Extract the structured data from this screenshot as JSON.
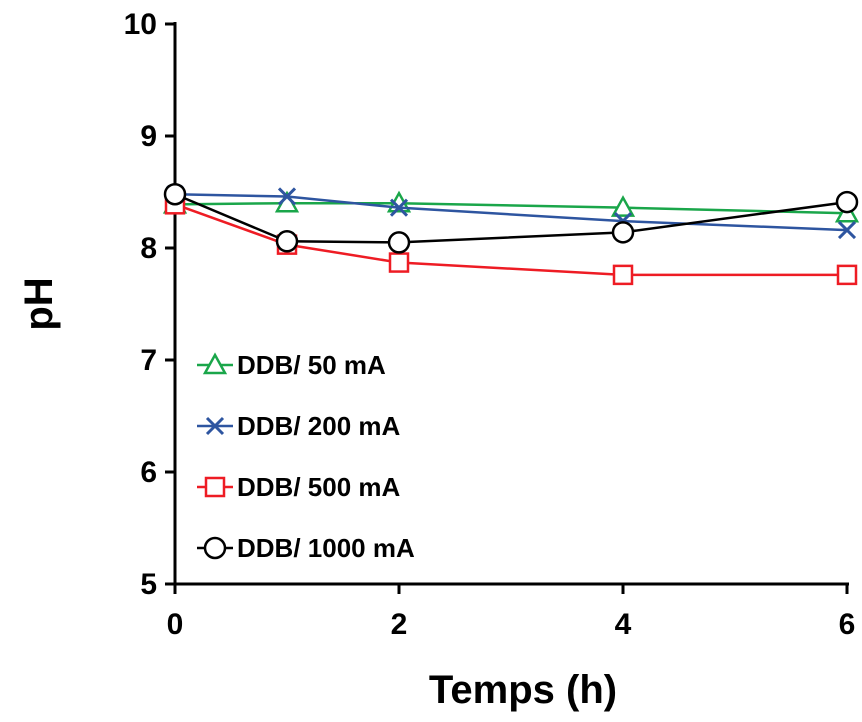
{
  "chart_data": {
    "type": "line",
    "xlabel": "Temps (h)",
    "ylabel": "pH",
    "xlim": [
      0,
      6
    ],
    "ylim": [
      5,
      10
    ],
    "xticks": [
      0,
      2,
      4,
      6
    ],
    "yticks": [
      5,
      6,
      7,
      8,
      9,
      10
    ],
    "grid": false,
    "legend_position": "left",
    "series": [
      {
        "name": "DDB/ 50 mA",
        "color": "#1aa64a",
        "marker": "triangle",
        "points": [
          {
            "x": 0,
            "y": 8.39
          },
          {
            "x": 1,
            "y": 8.4
          },
          {
            "x": 2,
            "y": 8.4
          },
          {
            "x": 4,
            "y": 8.36
          },
          {
            "x": 6,
            "y": 8.31
          }
        ]
      },
      {
        "name": "DDB/ 200 mA",
        "color": "#2e55a0",
        "marker": "x",
        "points": [
          {
            "x": 0,
            "y": 8.48
          },
          {
            "x": 1,
            "y": 8.46
          },
          {
            "x": 2,
            "y": 8.36
          },
          {
            "x": 4,
            "y": 8.24
          },
          {
            "x": 6,
            "y": 8.16
          }
        ]
      },
      {
        "name": "DDB/ 500 mA",
        "color": "#ee1c24",
        "marker": "square",
        "points": [
          {
            "x": 0,
            "y": 8.39
          },
          {
            "x": 1,
            "y": 8.03
          },
          {
            "x": 2,
            "y": 7.87
          },
          {
            "x": 4,
            "y": 7.76
          },
          {
            "x": 6,
            "y": 7.76
          }
        ]
      },
      {
        "name": "DDB/ 1000 mA",
        "color": "#000000",
        "marker": "circle",
        "points": [
          {
            "x": 0,
            "y": 8.48
          },
          {
            "x": 1,
            "y": 8.06
          },
          {
            "x": 2,
            "y": 8.05
          },
          {
            "x": 4,
            "y": 8.14
          },
          {
            "x": 6,
            "y": 8.41
          }
        ]
      }
    ]
  }
}
